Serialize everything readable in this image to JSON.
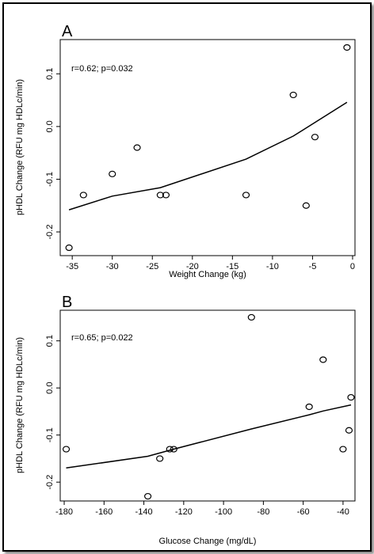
{
  "chart_data": [
    {
      "type": "scatter",
      "panel_label": "A",
      "annotation": "r=0.62; p=0.032",
      "xlabel": "Weight Change (kg)",
      "ylabel": "pHDL Change (RFU mg HDLc/min)",
      "xlim": [
        -36.5,
        0.3
      ],
      "ylim": [
        -0.245,
        0.165
      ],
      "xticks": [
        -35,
        -30,
        -25,
        -20,
        -15,
        -10,
        -5,
        0
      ],
      "xtick_labels": [
        "-35",
        "-30",
        "-25",
        "-20",
        "-15",
        "-10",
        "-5",
        "0"
      ],
      "yticks": [
        -0.2,
        -0.1,
        0.0,
        0.1
      ],
      "ytick_labels": [
        "-0.2",
        "-0.1",
        "0.0",
        "0.1"
      ],
      "grid": false,
      "points": [
        {
          "x": -35.4,
          "y": -0.23
        },
        {
          "x": -33.6,
          "y": -0.13
        },
        {
          "x": -30.0,
          "y": -0.09
        },
        {
          "x": -26.9,
          "y": -0.04
        },
        {
          "x": -24.0,
          "y": -0.13
        },
        {
          "x": -23.3,
          "y": -0.13
        },
        {
          "x": -13.3,
          "y": -0.13
        },
        {
          "x": -7.4,
          "y": 0.06
        },
        {
          "x": -5.8,
          "y": -0.15
        },
        {
          "x": -4.7,
          "y": -0.02
        },
        {
          "x": -0.7,
          "y": 0.15
        }
      ],
      "fit_line": [
        {
          "x": -35.4,
          "y": -0.158
        },
        {
          "x": -30.0,
          "y": -0.132
        },
        {
          "x": -24.0,
          "y": -0.116
        },
        {
          "x": -13.3,
          "y": -0.062
        },
        {
          "x": -7.4,
          "y": -0.018
        },
        {
          "x": -0.7,
          "y": 0.046
        }
      ]
    },
    {
      "type": "scatter",
      "panel_label": "B",
      "annotation": "r=0.65; p=0.022",
      "xlabel": "Glucose Change (mg/dL)",
      "ylabel": "pHDL Change (RFU mg HDLc/min)",
      "xlim": [
        -182,
        -34
      ],
      "ylim": [
        -0.24,
        0.165
      ],
      "xticks": [
        -180,
        -160,
        -140,
        -120,
        -100,
        -80,
        -60,
        -40
      ],
      "xtick_labels": [
        "-180",
        "-160",
        "-140",
        "-120",
        "-100",
        "-80",
        "-60",
        "-40"
      ],
      "yticks": [
        -0.2,
        -0.1,
        0.0,
        0.1
      ],
      "ytick_labels": [
        "-0.2",
        "-0.1",
        "0.0",
        "0.1"
      ],
      "grid": false,
      "points": [
        {
          "x": -179,
          "y": -0.13
        },
        {
          "x": -138,
          "y": -0.23
        },
        {
          "x": -132,
          "y": -0.15
        },
        {
          "x": -127,
          "y": -0.13
        },
        {
          "x": -125,
          "y": -0.13
        },
        {
          "x": -86,
          "y": 0.15
        },
        {
          "x": -57,
          "y": -0.04
        },
        {
          "x": -50,
          "y": 0.06
        },
        {
          "x": -40,
          "y": -0.13
        },
        {
          "x": -37,
          "y": -0.09
        },
        {
          "x": -36,
          "y": -0.02
        }
      ],
      "fit_line": [
        {
          "x": -179,
          "y": -0.17
        },
        {
          "x": -138,
          "y": -0.145
        },
        {
          "x": -125,
          "y": -0.13
        },
        {
          "x": -86,
          "y": -0.087
        },
        {
          "x": -57,
          "y": -0.057
        },
        {
          "x": -50,
          "y": -0.049
        },
        {
          "x": -36,
          "y": -0.036
        }
      ]
    }
  ]
}
